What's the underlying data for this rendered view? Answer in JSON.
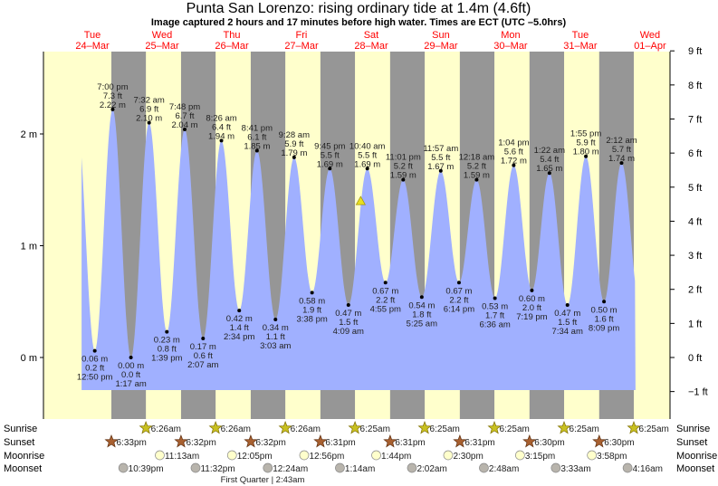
{
  "chart_data": {
    "type": "area",
    "title": "Punta San Lorenzo: rising  ordinary tide at 1.4m (4.6ft)",
    "subtitle": "Image captured 2 hours and 17 minutes before high water. Times are ECT (UTC –5.0hrs)",
    "days": [
      {
        "dow": "Tue",
        "date": "24–Mar"
      },
      {
        "dow": "Wed",
        "date": "25–Mar"
      },
      {
        "dow": "Thu",
        "date": "26–Mar"
      },
      {
        "dow": "Fri",
        "date": "27–Mar"
      },
      {
        "dow": "Sat",
        "date": "28–Mar"
      },
      {
        "dow": "Sun",
        "date": "29–Mar"
      },
      {
        "dow": "Mon",
        "date": "30–Mar"
      },
      {
        "dow": "Tue",
        "date": "31–Mar"
      },
      {
        "dow": "Wed",
        "date": "01–Apr"
      }
    ],
    "y_left": {
      "unit": "m",
      "ticks": [
        "0 m",
        "1 m",
        "2 m"
      ],
      "tick_values": [
        0,
        1,
        2
      ]
    },
    "y_right": {
      "unit": "ft",
      "ticks": [
        "−1 ft",
        "0 ft",
        "1 ft",
        "2 ft",
        "3 ft",
        "4 ft",
        "5 ft",
        "6 ft",
        "7 ft",
        "8 ft",
        "9 ft"
      ],
      "tick_values": [
        -1,
        0,
        1,
        2,
        3,
        4,
        5,
        6,
        7,
        8,
        9
      ]
    },
    "ylim_m": [
      -0.3,
      2.74
    ],
    "current": {
      "height_m": 1.4,
      "day": 4,
      "minutes_before_high": 137
    },
    "extremes": [
      {
        "type": "low",
        "day": 0,
        "time": "12:50 pm",
        "m": "0.06 m",
        "ft": "0.2 ft",
        "value": 0.06
      },
      {
        "type": "high",
        "day": 0,
        "time": "7:00 pm",
        "m": "2.22 m",
        "ft": "7.3 ft",
        "value": 2.22
      },
      {
        "type": "low",
        "day": 1,
        "time": "1:17 am",
        "m": "0.00 m",
        "ft": "0.0 ft",
        "value": 0.0
      },
      {
        "type": "high",
        "day": 1,
        "time": "7:32 am",
        "m": "2.10 m",
        "ft": "6.9 ft",
        "value": 2.1
      },
      {
        "type": "low",
        "day": 1,
        "time": "1:39 pm",
        "m": "0.23 m",
        "ft": "0.8 ft",
        "value": 0.23
      },
      {
        "type": "high",
        "day": 1,
        "time": "7:48 pm",
        "m": "2.04 m",
        "ft": "6.7 ft",
        "value": 2.04
      },
      {
        "type": "low",
        "day": 2,
        "time": "2:07 am",
        "m": "0.17 m",
        "ft": "0.6 ft",
        "value": 0.17
      },
      {
        "type": "high",
        "day": 2,
        "time": "8:26 am",
        "m": "1.94 m",
        "ft": "6.4 ft",
        "value": 1.94
      },
      {
        "type": "low",
        "day": 2,
        "time": "2:34 pm",
        "m": "0.42 m",
        "ft": "1.4 ft",
        "value": 0.42
      },
      {
        "type": "high",
        "day": 2,
        "time": "8:41 pm",
        "m": "1.85 m",
        "ft": "6.1 ft",
        "value": 1.85
      },
      {
        "type": "low",
        "day": 3,
        "time": "3:03 am",
        "m": "0.34 m",
        "ft": "1.1 ft",
        "value": 0.34
      },
      {
        "type": "high",
        "day": 3,
        "time": "9:28 am",
        "m": "1.79 m",
        "ft": "5.9 ft",
        "value": 1.79
      },
      {
        "type": "low",
        "day": 3,
        "time": "3:38 pm",
        "m": "0.58 m",
        "ft": "1.9 ft",
        "value": 0.58
      },
      {
        "type": "high",
        "day": 3,
        "time": "9:45 pm",
        "m": "1.69 m",
        "ft": "5.5 ft",
        "value": 1.69
      },
      {
        "type": "low",
        "day": 4,
        "time": "4:09 am",
        "m": "0.47 m",
        "ft": "1.5 ft",
        "value": 0.47
      },
      {
        "type": "high",
        "day": 4,
        "time": "10:40 am",
        "m": "1.69 m",
        "ft": "5.5 ft",
        "value": 1.69
      },
      {
        "type": "low",
        "day": 4,
        "time": "4:55 pm",
        "m": "0.67 m",
        "ft": "2.2 ft",
        "value": 0.67
      },
      {
        "type": "high",
        "day": 4,
        "time": "11:01 pm",
        "m": "1.59 m",
        "ft": "5.2 ft",
        "value": 1.59
      },
      {
        "type": "low",
        "day": 5,
        "time": "5:25 am",
        "m": "0.54 m",
        "ft": "1.8 ft",
        "value": 0.54
      },
      {
        "type": "high",
        "day": 5,
        "time": "11:57 am",
        "m": "1.67 m",
        "ft": "5.5 ft",
        "value": 1.67
      },
      {
        "type": "low",
        "day": 5,
        "time": "6:14 pm",
        "m": "0.67 m",
        "ft": "2.2 ft",
        "value": 0.67
      },
      {
        "type": "high",
        "day": 6,
        "time": "12:18 am",
        "m": "1.59 m",
        "ft": "5.2 ft",
        "value": 1.59
      },
      {
        "type": "low",
        "day": 6,
        "time": "6:36 am",
        "m": "0.53 m",
        "ft": "1.7 ft",
        "value": 0.53
      },
      {
        "type": "high",
        "day": 6,
        "time": "1:04 pm",
        "m": "1.72 m",
        "ft": "5.6 ft",
        "value": 1.72
      },
      {
        "type": "low",
        "day": 6,
        "time": "7:19 pm",
        "m": "0.60 m",
        "ft": "2.0 ft",
        "value": 0.6
      },
      {
        "type": "high",
        "day": 7,
        "time": "1:22 am",
        "m": "1.65 m",
        "ft": "5.4 ft",
        "value": 1.65
      },
      {
        "type": "low",
        "day": 7,
        "time": "7:34 am",
        "m": "0.47 m",
        "ft": "1.5 ft",
        "value": 0.47
      },
      {
        "type": "high",
        "day": 7,
        "time": "1:55 pm",
        "m": "1.80 m",
        "ft": "5.9 ft",
        "value": 1.8
      },
      {
        "type": "low",
        "day": 7,
        "time": "8:09 pm",
        "m": "0.50 m",
        "ft": "1.6 ft",
        "value": 0.5
      },
      {
        "type": "high",
        "day": 8,
        "time": "2:12 am",
        "m": "1.74 m",
        "ft": "5.7 ft",
        "value": 1.74
      }
    ],
    "astro_rows": {
      "sunrise": {
        "label": "Sunrise",
        "events": [
          {
            "day": 1,
            "time": "6:26am"
          },
          {
            "day": 2,
            "time": "6:26am"
          },
          {
            "day": 3,
            "time": "6:26am"
          },
          {
            "day": 4,
            "time": "6:25am"
          },
          {
            "day": 5,
            "time": "6:25am"
          },
          {
            "day": 6,
            "time": "6:25am"
          },
          {
            "day": 7,
            "time": "6:25am"
          },
          {
            "day": 8,
            "time": "6:25am"
          }
        ]
      },
      "sunset": {
        "label": "Sunset",
        "events": [
          {
            "day": 0,
            "time": "6:33pm"
          },
          {
            "day": 1,
            "time": "6:32pm"
          },
          {
            "day": 2,
            "time": "6:32pm"
          },
          {
            "day": 3,
            "time": "6:31pm"
          },
          {
            "day": 4,
            "time": "6:31pm"
          },
          {
            "day": 5,
            "time": "6:31pm"
          },
          {
            "day": 6,
            "time": "6:30pm"
          },
          {
            "day": 7,
            "time": "6:30pm"
          }
        ]
      },
      "moonrise": {
        "label": "Moonrise",
        "events": [
          {
            "day": 1,
            "time": "11:13am"
          },
          {
            "day": 2,
            "time": "12:05pm"
          },
          {
            "day": 3,
            "time": "12:56pm"
          },
          {
            "day": 4,
            "time": "1:44pm"
          },
          {
            "day": 5,
            "time": "2:30pm"
          },
          {
            "day": 6,
            "time": "3:15pm"
          },
          {
            "day": 7,
            "time": "3:58pm"
          }
        ]
      },
      "moonset": {
        "label": "Moonset",
        "events": [
          {
            "day": 0,
            "time": "10:39pm"
          },
          {
            "day": 1,
            "time": "11:32pm"
          },
          {
            "day": 3,
            "time": "12:24am"
          },
          {
            "day": 4,
            "time": "1:14am"
          },
          {
            "day": 5,
            "time": "2:02am"
          },
          {
            "day": 6,
            "time": "2:48am"
          },
          {
            "day": 7,
            "time": "3:33am"
          },
          {
            "day": 8,
            "time": "4:16am"
          }
        ]
      }
    },
    "moon_phase": {
      "text": "First Quarter | 2:43am",
      "day": 3
    },
    "colors": {
      "day": "#ffffcc",
      "night": "#969696",
      "water": "#a0b0ff",
      "date": "#ff0000",
      "sunrise": "#c8c020",
      "sunset": "#a86030",
      "moonrise": "#ffffcc",
      "moonset": "#b8b4ac",
      "marker": "#e8e020"
    }
  }
}
